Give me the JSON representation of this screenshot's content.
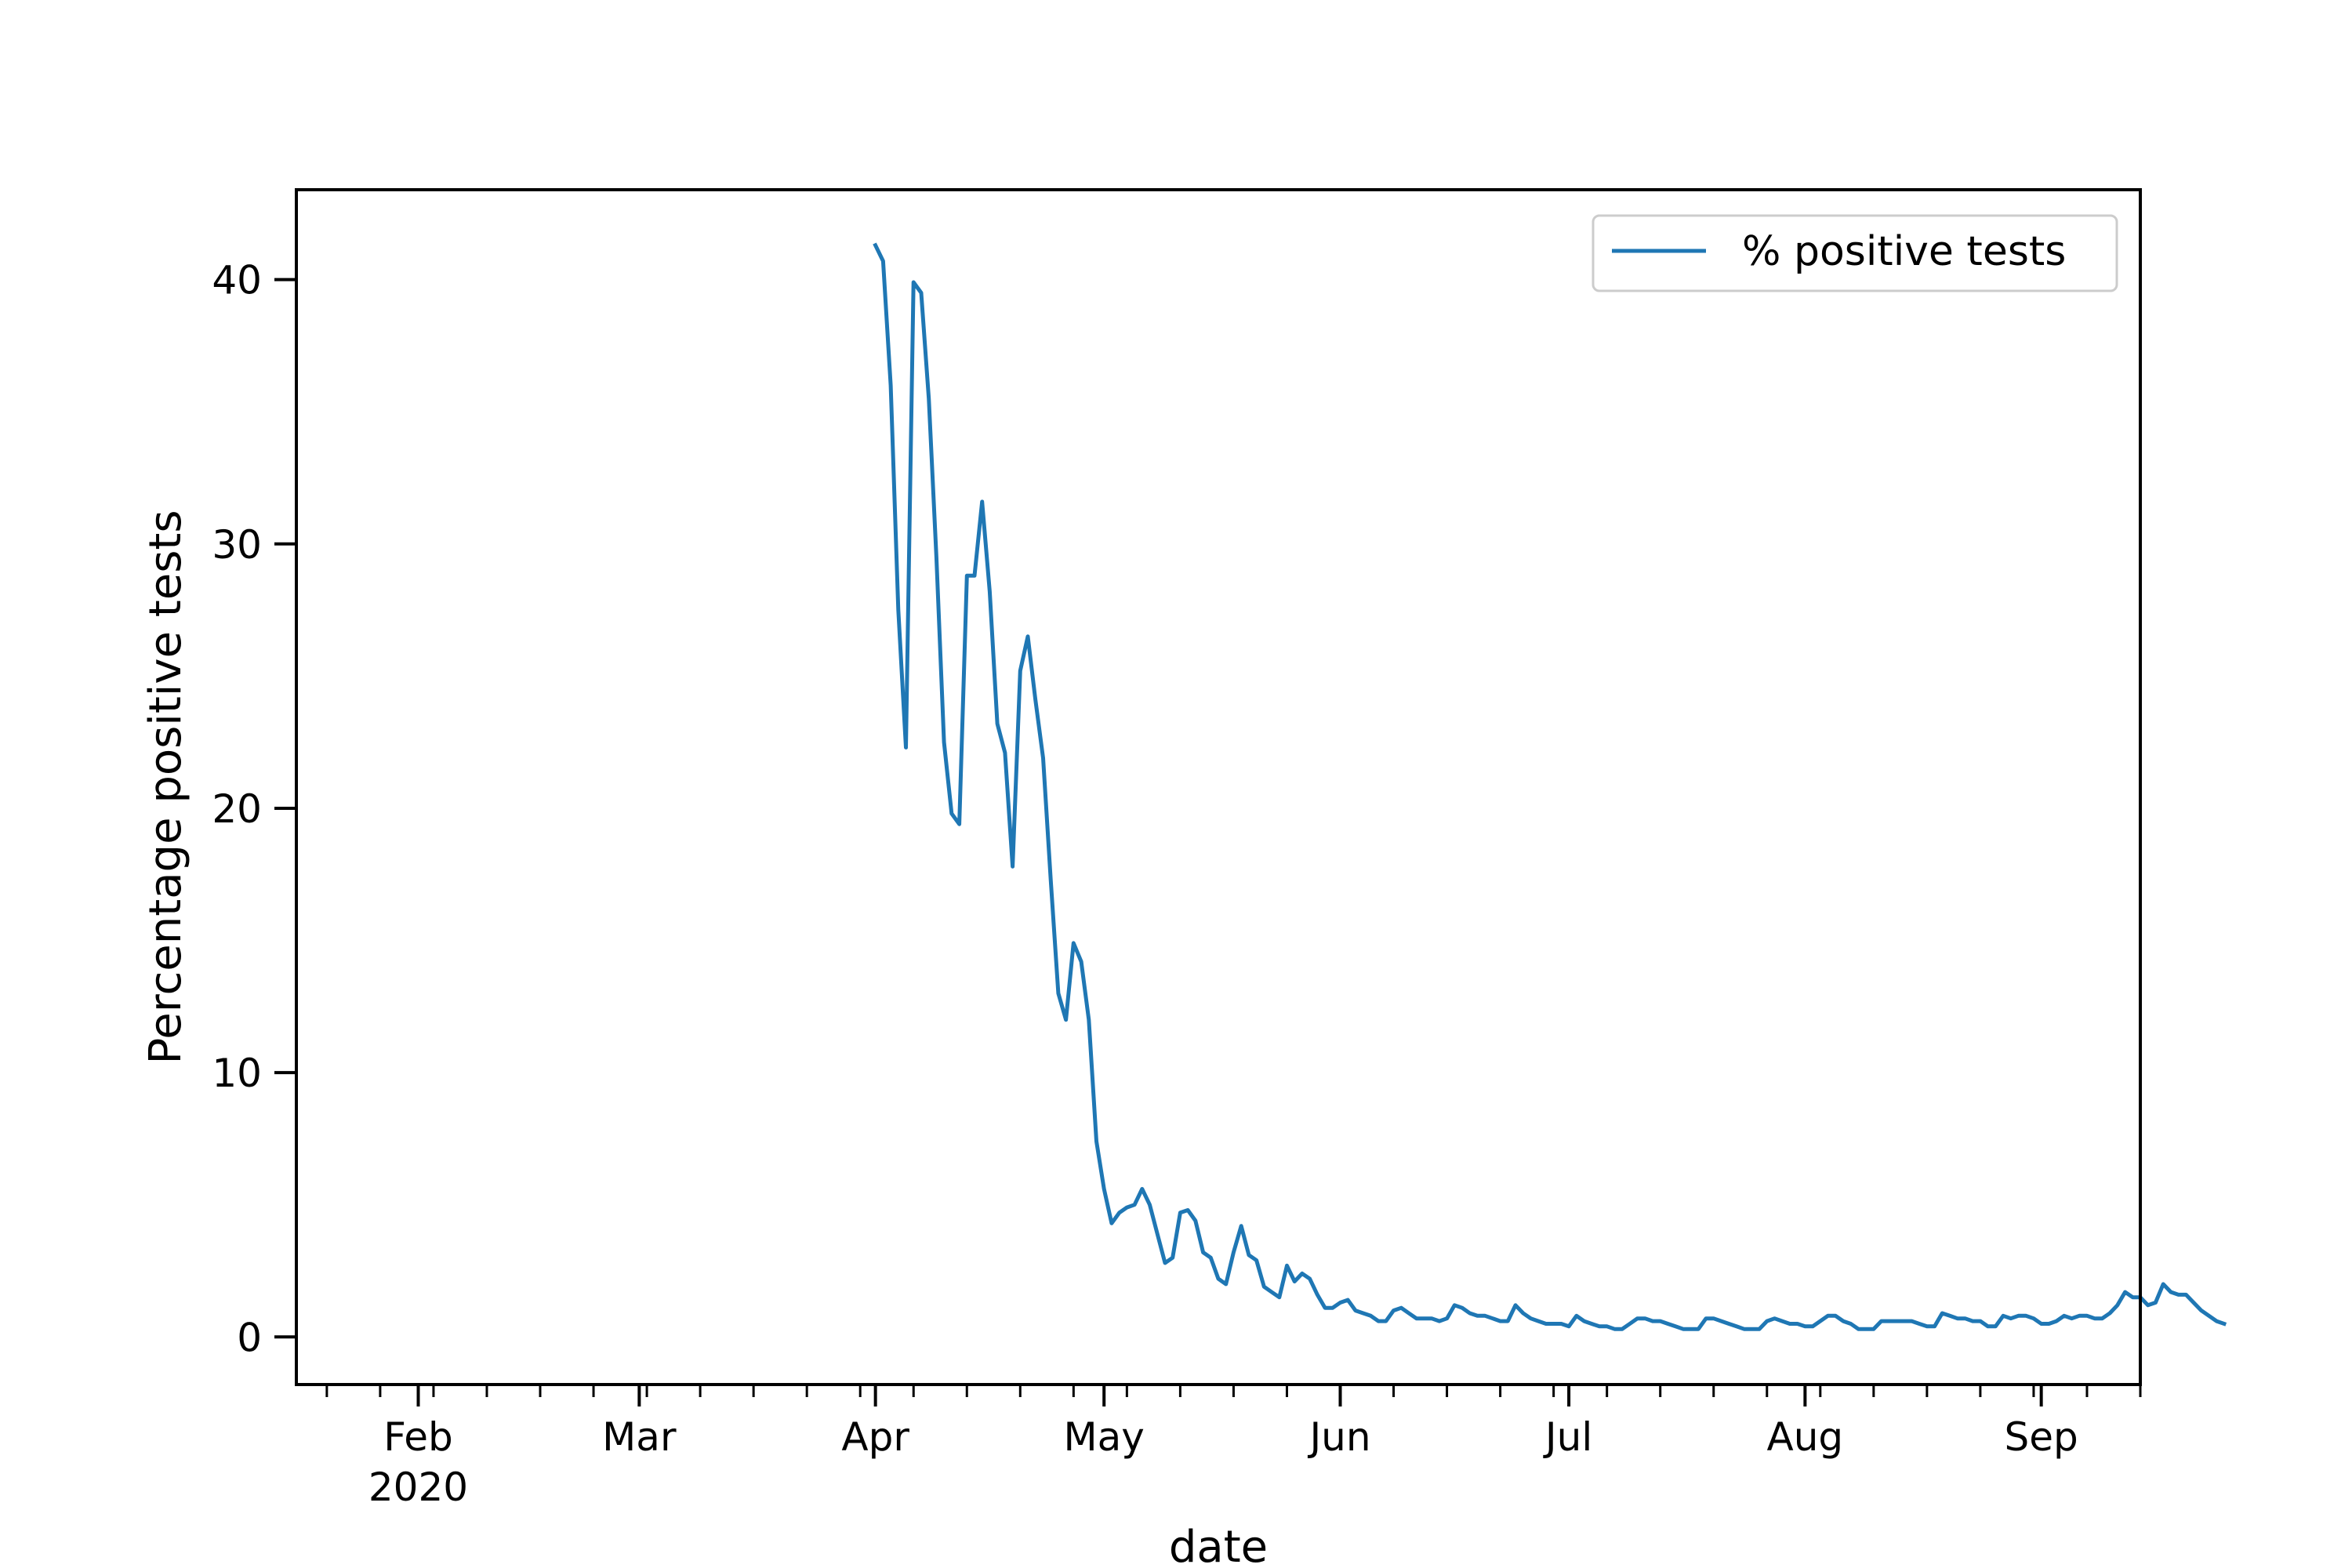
{
  "chart_data": {
    "type": "line",
    "xlabel": "date",
    "ylabel": "Percentage positive tests",
    "xlim": [
      "2020-01-16",
      "2020-09-14"
    ],
    "ylim": [
      -1.8,
      43.4
    ],
    "x_ticks": [
      {
        "date": "2020-02-01",
        "label": "Feb",
        "sublabel": "2020"
      },
      {
        "date": "2020-03-01",
        "label": "Mar",
        "sublabel": ""
      },
      {
        "date": "2020-04-01",
        "label": "Apr",
        "sublabel": ""
      },
      {
        "date": "2020-05-01",
        "label": "May",
        "sublabel": ""
      },
      {
        "date": "2020-06-01",
        "label": "Jun",
        "sublabel": ""
      },
      {
        "date": "2020-07-01",
        "label": "Jul",
        "sublabel": ""
      },
      {
        "date": "2020-08-01",
        "label": "Aug",
        "sublabel": ""
      },
      {
        "date": "2020-09-01",
        "label": "Sep",
        "sublabel": ""
      }
    ],
    "y_ticks": [
      0,
      10,
      20,
      30,
      40
    ],
    "legend": {
      "position": "top-right"
    },
    "grid": false,
    "series": [
      {
        "name": "% positive tests",
        "color": "#1f77b4",
        "start_date": "2020-04-01",
        "values": [
          41.3,
          40.7,
          36.0,
          27.5,
          22.3,
          39.9,
          39.5,
          35.5,
          29.5,
          22.5,
          19.8,
          19.4,
          28.8,
          28.8,
          31.6,
          28.2,
          23.2,
          22.1,
          17.8,
          25.2,
          26.5,
          24.1,
          21.9,
          17.3,
          13.0,
          12.0,
          14.9,
          14.2,
          12.0,
          7.4,
          5.6,
          4.3,
          4.7,
          4.9,
          5.0,
          5.6,
          5.0,
          3.9,
          2.8,
          3.0,
          4.7,
          4.8,
          4.4,
          3.2,
          3.0,
          2.2,
          2.0,
          3.2,
          4.2,
          3.1,
          2.9,
          1.9,
          1.7,
          1.5,
          2.7,
          2.1,
          2.4,
          2.2,
          1.6,
          1.1,
          1.1,
          1.3,
          1.4,
          1.0,
          0.9,
          0.8,
          0.6,
          0.6,
          1.0,
          1.1,
          0.9,
          0.7,
          0.7,
          0.7,
          0.6,
          0.7,
          1.2,
          1.1,
          0.9,
          0.8,
          0.8,
          0.7,
          0.6,
          0.6,
          1.2,
          0.9,
          0.7,
          0.6,
          0.5,
          0.5,
          0.5,
          0.4,
          0.8,
          0.6,
          0.5,
          0.4,
          0.4,
          0.3,
          0.3,
          0.5,
          0.7,
          0.7,
          0.6,
          0.6,
          0.5,
          0.4,
          0.3,
          0.3,
          0.3,
          0.7,
          0.7,
          0.6,
          0.5,
          0.4,
          0.3,
          0.3,
          0.3,
          0.6,
          0.7,
          0.6,
          0.5,
          0.5,
          0.4,
          0.4,
          0.6,
          0.8,
          0.8,
          0.6,
          0.5,
          0.3,
          0.3,
          0.3,
          0.6,
          0.6,
          0.6,
          0.6,
          0.6,
          0.5,
          0.4,
          0.4,
          0.9,
          0.8,
          0.7,
          0.7,
          0.6,
          0.6,
          0.4,
          0.4,
          0.8,
          0.7,
          0.8,
          0.8,
          0.7,
          0.5,
          0.5,
          0.6,
          0.8,
          0.7,
          0.8,
          0.8,
          0.7,
          0.7,
          0.9,
          1.2,
          1.7,
          1.5,
          1.5,
          1.2,
          1.3,
          2.0,
          1.7,
          1.6,
          1.6,
          1.3,
          1.0,
          0.8,
          0.6,
          0.5
        ]
      }
    ]
  }
}
